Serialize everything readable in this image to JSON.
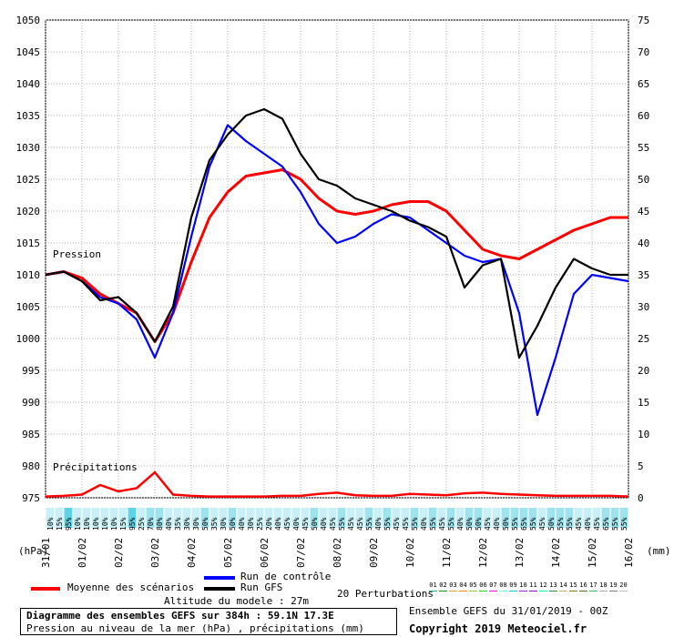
{
  "chart_data": {
    "type": "line",
    "title": "Diagramme des ensembles GEFS sur 384h : 59.1N 17.3E",
    "subtitle": "Pression au niveau de la mer (hPa) , précipitations (mm)",
    "left_axis_unit": "(hPa)",
    "right_axis_unit": "(mm)",
    "pressure_label": "Pression",
    "precip_label": "Précipitations",
    "left_ticks": [
      975,
      980,
      985,
      990,
      995,
      1000,
      1005,
      1010,
      1015,
      1020,
      1025,
      1030,
      1035,
      1040,
      1045,
      1050
    ],
    "right_ticks": [
      0,
      5,
      10,
      15,
      20,
      25,
      30,
      35,
      40,
      45,
      50,
      55,
      60,
      65,
      70,
      75
    ],
    "ylim_pressure": [
      975,
      1050
    ],
    "ylim_precip": [
      0,
      75
    ],
    "x_labels": [
      "31/01",
      "01/02",
      "02/02",
      "03/02",
      "04/02",
      "05/02",
      "06/02",
      "07/02",
      "08/02",
      "09/02",
      "10/02",
      "11/02",
      "12/02",
      "13/02",
      "14/02",
      "15/02",
      "16/02"
    ],
    "series": [
      {
        "name": "Moyenne des scénarios",
        "color": "#ff0000",
        "values": [
          1010,
          1010.5,
          1009.5,
          1007,
          1005.5,
          1004,
          999.5,
          1004,
          1012,
          1019,
          1023,
          1025.5,
          1026,
          1026.5,
          1025,
          1022,
          1020,
          1019.5,
          1020,
          1021,
          1021.5,
          1021.5,
          1020,
          1017,
          1014,
          1013,
          1012.5,
          1014,
          1015.5,
          1017,
          1018,
          1019,
          1019
        ]
      },
      {
        "name": "Run de contrôle",
        "color": "#0000ff",
        "values": [
          1010,
          1010.5,
          1009,
          1006.5,
          1005.5,
          1003,
          997,
          1004,
          1016,
          1027,
          1033.5,
          1031,
          1029,
          1027,
          1023,
          1018,
          1015,
          1016,
          1018,
          1019.5,
          1019,
          1017,
          1015,
          1013,
          1012,
          1012.5,
          1004,
          988,
          997,
          1007,
          1010,
          1009.5,
          1009
        ]
      },
      {
        "name": "Run GFS",
        "color": "#000000",
        "values": [
          1010,
          1010.5,
          1009,
          1006,
          1006.5,
          1004,
          999.5,
          1005,
          1019,
          1028,
          1032,
          1035,
          1036,
          1034.5,
          1029,
          1025,
          1024,
          1022,
          1021,
          1020,
          1018.5,
          1017.5,
          1016,
          1008,
          1011.5,
          1012.5,
          997,
          1002,
          1008,
          1012.5,
          1011,
          1010,
          1010
        ]
      }
    ],
    "precip_mean": [
      0.2,
      0.3,
      0.5,
      2,
      1,
      1.5,
      4,
      0.5,
      0.3,
      0.2,
      0.2,
      0.2,
      0.2,
      0.3,
      0.3,
      0.6,
      0.8,
      0.4,
      0.3,
      0.3,
      0.6,
      0.5,
      0.4,
      0.7,
      0.8,
      0.6,
      0.5,
      0.4,
      0.3,
      0.3,
      0.3,
      0.3,
      0.2
    ],
    "precip_prob_percent": [
      "10%",
      "15%",
      "95%",
      "10%",
      "10%",
      "10%",
      "10%",
      "10%",
      "15%",
      "95%",
      "25%",
      "70%",
      "80%",
      "40%",
      "35%",
      "30%",
      "30%",
      "50%",
      "35%",
      "30%",
      "50%",
      "40%",
      "30%",
      "25%",
      "20%",
      "40%",
      "45%",
      "40%",
      "45%",
      "50%",
      "40%",
      "45%",
      "55%",
      "45%",
      "45%",
      "55%",
      "40%",
      "55%",
      "45%",
      "45%",
      "55%",
      "40%",
      "55%",
      "45%",
      "55%",
      "40%",
      "50%",
      "50%",
      "45%",
      "40%",
      "50%",
      "55%",
      "65%",
      "55%",
      "45%",
      "50%",
      "55%",
      "55%",
      "45%",
      "40%",
      "45%",
      "65%",
      "55%",
      "55%"
    ]
  },
  "legend": {
    "mean_label": "Moyenne des scénarios",
    "control_label": "Run de contrôle",
    "gfs_label": "Run GFS",
    "perturbations_label": "20 Perturbations",
    "perturbation_numbers": [
      "01",
      "02",
      "03",
      "04",
      "05",
      "06",
      "07",
      "08",
      "09",
      "10",
      "11",
      "12",
      "13",
      "14",
      "15",
      "16",
      "17",
      "18",
      "19",
      "20"
    ],
    "perturbation_colors": [
      "#20b2aa",
      "#228b22",
      "#daa520",
      "#ff8c00",
      "#9acd32",
      "#32cd32",
      "#ff00ff",
      "#7fffd4",
      "#00ced1",
      "#8a2be2",
      "#9400d3",
      "#00fa9a",
      "#2e8b57",
      "#bdb76b",
      "#808000",
      "#556b2f",
      "#3cb371",
      "#a9a9a9",
      "#808080",
      "#c0c0c0"
    ]
  },
  "footer": {
    "altitude": "Altitude du modele : 27m",
    "ensemble_title": "Ensemble GEFS du 31/01/2019 - 00Z",
    "copyright": "Copyright 2019 Meteociel.fr"
  }
}
